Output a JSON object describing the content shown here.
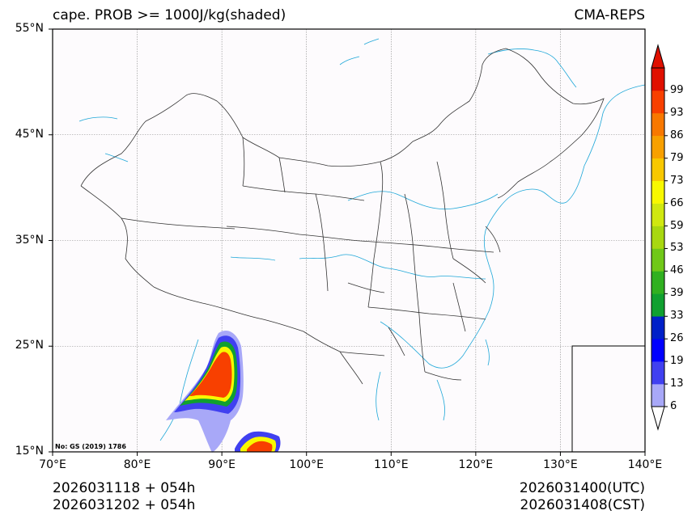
{
  "title_left": "cape. PROB >= 1000J/kg(shaded)",
  "title_right": "CMA-REPS",
  "map_credit": "No: GS (2019) 1786",
  "info": {
    "init_utc": "2026031118  +  054h",
    "init_cst": "2026031202  +  054h",
    "valid_utc": "2026031400(UTC)",
    "valid_cst": "2026031408(CST)"
  },
  "axes": {
    "lon_min": 70,
    "lon_max": 140,
    "lat_min": 15,
    "lat_max": 55,
    "x_ticks": [
      "70°E",
      "80°E",
      "90°E",
      "100°E",
      "110°E",
      "120°E",
      "130°E",
      "140°E"
    ],
    "y_ticks": [
      "55°N",
      "45°N",
      "35°N",
      "25°N",
      "15°N"
    ],
    "grid_lon": [
      80,
      90,
      100,
      110,
      120,
      130
    ],
    "grid_lat": [
      25,
      35,
      45
    ]
  },
  "colorbar": {
    "levels": [
      "6",
      "13",
      "19",
      "26",
      "33",
      "39",
      "46",
      "53",
      "59",
      "66",
      "73",
      "79",
      "86",
      "93",
      "99"
    ],
    "colors": [
      "#a8a8f8",
      "#4040f0",
      "#0000ff",
      "#0020c8",
      "#10a030",
      "#30b020",
      "#70c818",
      "#a8d810",
      "#d0e810",
      "#f8f800",
      "#f8c800",
      "#f8a000",
      "#f87800",
      "#f84000",
      "#e01000"
    ],
    "under_color": "#ffffff",
    "over_color": "#e01000"
  },
  "colors": {
    "ocean_line": "#1ea7d8",
    "border_line": "#333333",
    "grid_line": "#888888",
    "background": "#fdfbfd"
  }
}
